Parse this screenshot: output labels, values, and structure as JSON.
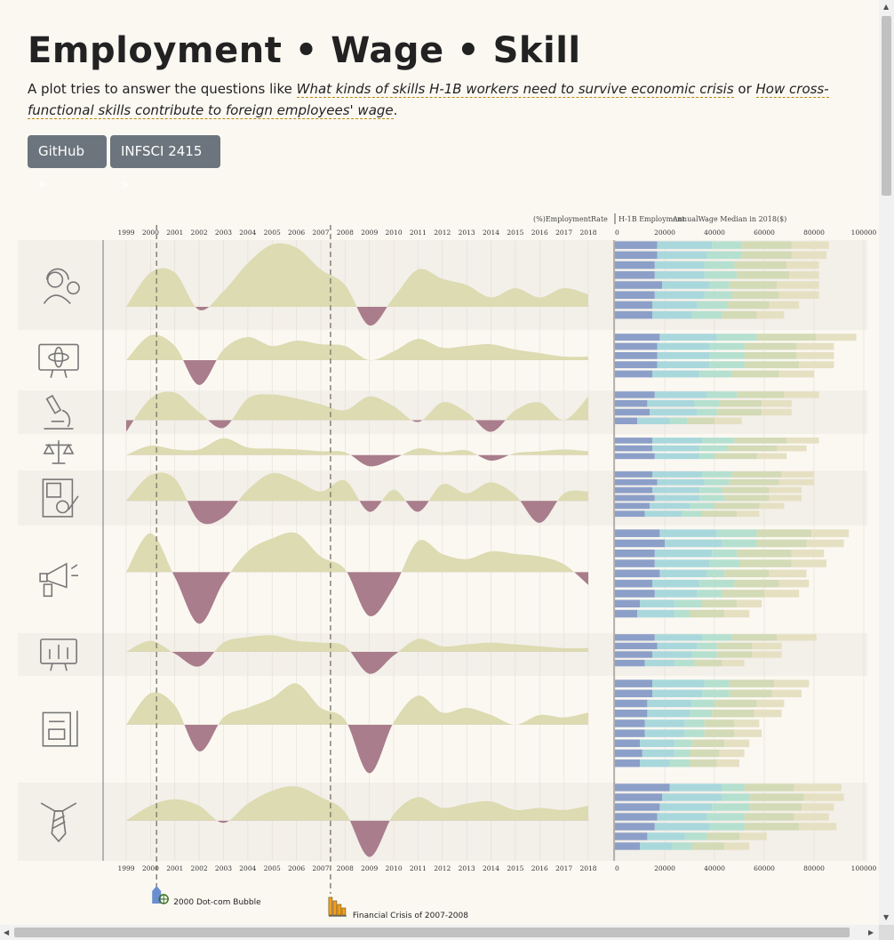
{
  "page": {
    "title": "Employment • Wage • Skill",
    "intro": {
      "text1": "A plot tries to answer the questions like ",
      "q1": "What kinds of skills H-1B workers need to survive economic crisis",
      "text2": " or ",
      "q2": "How cross-functional skills contribute to foreign employees' wage",
      "text3": "."
    },
    "buttons": {
      "github": "GitHub »",
      "infsci": "INFSCI 2415 »"
    }
  },
  "chart_labels": {
    "employment_rate": "(%)EmploymentRate",
    "h1b_employment": "H-1B Employment",
    "annual_wage": "AnnualWage Median in 2018($)"
  },
  "events": [
    {
      "year": 2000.25,
      "label": "2000 Dot-com Bubble",
      "icon": "bubble-pin-icon",
      "color": "#6a8fd0"
    },
    {
      "year": 2007.4,
      "label": "Financial Crisis of 2007-2008",
      "icon": "falling-bars-icon",
      "color": "#f0a020"
    }
  ],
  "colors": {
    "positive": "#dcdbb1",
    "negative": "#a97d8c",
    "band_odd": "#f3efe9",
    "band_even": "#fbf8f2",
    "bar_segments": [
      "#8c9fc8",
      "#a9d8dc",
      "#b5e0d0",
      "#d3dab6",
      "#e6e0c3"
    ],
    "accent": "#6c757d"
  },
  "chart_data": {
    "type": "area",
    "years": [
      1999,
      2000,
      2001,
      2002,
      2003,
      2004,
      2005,
      2006,
      2007,
      2008,
      2009,
      2010,
      2011,
      2012,
      2013,
      2014,
      2015,
      2016,
      2017,
      2018
    ],
    "wage_axis": {
      "ticks": [
        0,
        20000,
        40000,
        60000,
        80000,
        100000
      ]
    },
    "groups": [
      {
        "icon": "tech-support-icon",
        "emp": [
          0,
          0.55,
          0.55,
          -0.05,
          0.25,
          0.7,
          1.0,
          0.95,
          0.6,
          0.35,
          -0.3,
          0.15,
          0.6,
          0.45,
          0.35,
          0.15,
          0.3,
          0.15,
          0.3,
          0.2
        ],
        "wages": [
          [
            17000,
            22000,
            12000,
            20000,
            15000
          ],
          [
            17000,
            20000,
            14000,
            20000,
            14000
          ],
          [
            16000,
            20000,
            12000,
            21000,
            13000
          ],
          [
            16000,
            20000,
            13000,
            21000,
            12000
          ],
          [
            19000,
            19000,
            8000,
            19000,
            17000
          ],
          [
            16000,
            20000,
            11000,
            19000,
            16000
          ],
          [
            15000,
            18000,
            12000,
            17000,
            12000
          ],
          [
            15000,
            16000,
            12000,
            14000,
            11000
          ],
          [
            0,
            0,
            0,
            0,
            0
          ]
        ]
      },
      {
        "icon": "science-monitor-icon",
        "emp": [
          0,
          0.7,
          0.4,
          -0.7,
          0.3,
          0.65,
          0.4,
          0.55,
          0.45,
          0.4,
          0,
          0.25,
          0.6,
          0.35,
          0.4,
          0.45,
          0.3,
          0.2,
          0.1,
          0.1
        ],
        "wages": [
          [
            18000,
            23000,
            16000,
            24000,
            16000
          ],
          [
            17000,
            21000,
            14000,
            21000,
            15000
          ],
          [
            17000,
            21000,
            14000,
            21000,
            15000
          ],
          [
            17000,
            21000,
            14000,
            22000,
            14000
          ],
          [
            15000,
            19000,
            13000,
            19000,
            14000
          ],
          [
            0,
            0,
            0,
            0,
            0
          ]
        ]
      },
      {
        "icon": "microscope-icon",
        "emp": [
          -0.3,
          0.55,
          0.7,
          0.2,
          -0.2,
          0.55,
          0.65,
          0.55,
          0.4,
          0.25,
          0.6,
          0.35,
          -0.05,
          0.45,
          0.2,
          -0.3,
          0.25,
          0.45,
          0,
          0.6
        ],
        "wages": [
          [
            16000,
            21000,
            12000,
            19000,
            14000
          ],
          [
            13000,
            19000,
            10000,
            17000,
            12000
          ],
          [
            14000,
            19000,
            8000,
            18000,
            12000
          ],
          [
            9000,
            13000,
            7000,
            11000,
            11000
          ],
          [
            0,
            0,
            0,
            0,
            0
          ]
        ]
      },
      {
        "icon": "scale-icon",
        "emp": [
          0,
          0.5,
          0.3,
          0.3,
          0.9,
          0.4,
          0.35,
          0.3,
          0.2,
          0.15,
          -0.6,
          -0.2,
          0.35,
          0.15,
          0.25,
          -0.3,
          0.1,
          0.2,
          0.3,
          0.2
        ],
        "wages": [
          [
            15000,
            20000,
            13000,
            21000,
            13000
          ],
          [
            15000,
            19000,
            11000,
            20000,
            12000
          ],
          [
            16000,
            18000,
            6000,
            17000,
            12000
          ],
          [
            0,
            0,
            0,
            0,
            0
          ]
        ]
      },
      {
        "icon": "accounting-document-icon",
        "emp": [
          0,
          0.7,
          0.6,
          -0.55,
          -0.45,
          0.3,
          0.75,
          0.55,
          0.25,
          0.55,
          -0.3,
          0.3,
          -0.3,
          0.45,
          0.2,
          0.5,
          0.15,
          -0.6,
          0.2,
          0.25
        ],
        "wages": [
          [
            15000,
            20000,
            12000,
            20000,
            13000
          ],
          [
            17000,
            19000,
            10000,
            20000,
            14000
          ],
          [
            15000,
            19000,
            9000,
            19000,
            13000
          ],
          [
            16000,
            18000,
            10000,
            18000,
            13000
          ],
          [
            14000,
            16000,
            10000,
            18000,
            10000
          ],
          [
            12000,
            15000,
            8000,
            14000,
            9000
          ],
          [
            0,
            0,
            0,
            0,
            0
          ]
        ]
      },
      {
        "icon": "megaphone-icon",
        "emp": [
          0,
          0.75,
          -0.1,
          -1.0,
          -0.2,
          0.4,
          0.65,
          0.75,
          0.3,
          0.05,
          -0.85,
          -0.3,
          0.6,
          0.35,
          0.25,
          0.4,
          0.35,
          0.3,
          0.15,
          -0.25
        ],
        "wages": [
          [
            18000,
            23000,
            16000,
            22000,
            15000
          ],
          [
            20000,
            23000,
            14000,
            20000,
            15000
          ],
          [
            16000,
            23000,
            10000,
            22000,
            13000
          ],
          [
            16000,
            22000,
            12000,
            21000,
            14000
          ],
          [
            18000,
            19000,
            7000,
            18000,
            15000
          ],
          [
            15000,
            19000,
            14000,
            18000,
            12000
          ],
          [
            16000,
            17000,
            10000,
            17000,
            14000
          ],
          [
            10000,
            14000,
            11000,
            14000,
            10000
          ],
          [
            9000,
            15000,
            6000,
            14000,
            10000
          ],
          [
            0,
            0,
            0,
            0,
            0
          ]
        ]
      },
      {
        "icon": "analytics-monitor-icon",
        "emp": [
          0,
          0.3,
          -0.05,
          -0.4,
          0.25,
          0.4,
          0.45,
          0.3,
          0.25,
          0.15,
          -0.6,
          -0.1,
          0.35,
          0.15,
          0.2,
          0.25,
          0.2,
          0.15,
          0.1,
          0.1
        ],
        "wages": [
          [
            16000,
            19000,
            12000,
            18000,
            16000
          ],
          [
            17000,
            16000,
            8000,
            14000,
            12000
          ],
          [
            15000,
            16000,
            10000,
            14000,
            12000
          ],
          [
            12000,
            12000,
            8000,
            11000,
            9000
          ],
          [
            0,
            0,
            0,
            0,
            0
          ]
        ]
      },
      {
        "icon": "finance-document-icon",
        "emp": [
          0,
          0.65,
          0.4,
          -0.55,
          0.15,
          0.35,
          0.55,
          0.85,
          0.35,
          0.1,
          -1.0,
          0.05,
          0.6,
          0.25,
          0.35,
          0.2,
          0,
          0.2,
          0.15,
          0.25
        ],
        "wages": [
          [
            15000,
            21000,
            10000,
            18000,
            14000
          ],
          [
            15000,
            20000,
            11000,
            17000,
            12000
          ],
          [
            13000,
            18000,
            9000,
            17000,
            11000
          ],
          [
            13000,
            17000,
            9000,
            17000,
            11000
          ],
          [
            12000,
            16000,
            8000,
            12000,
            10000
          ],
          [
            12000,
            16000,
            8000,
            12000,
            11000
          ],
          [
            10000,
            14000,
            7000,
            13000,
            10000
          ],
          [
            11000,
            13000,
            6000,
            12000,
            10000
          ],
          [
            10000,
            12000,
            8000,
            11000,
            9000
          ],
          [
            0,
            0,
            0,
            0,
            0
          ]
        ]
      },
      {
        "icon": "necktie-icon",
        "emp": [
          0,
          0.35,
          0.5,
          0.35,
          -0.05,
          0.4,
          0.7,
          0.8,
          0.55,
          0.2,
          -0.85,
          0.15,
          0.55,
          0.3,
          0.4,
          0.45,
          0.25,
          0.3,
          0.25,
          0.35
        ],
        "wages": [
          [
            22000,
            21000,
            9000,
            20000,
            19000
          ],
          [
            19000,
            24000,
            11000,
            22000,
            16000
          ],
          [
            18000,
            21000,
            15000,
            21000,
            13000
          ],
          [
            17000,
            20000,
            15000,
            20000,
            14000
          ],
          [
            16000,
            22000,
            14000,
            22000,
            15000
          ],
          [
            13000,
            15000,
            9000,
            13000,
            11000
          ],
          [
            10000,
            13000,
            8000,
            13000,
            10000
          ],
          [
            0,
            0,
            0,
            0,
            0
          ]
        ]
      }
    ]
  }
}
